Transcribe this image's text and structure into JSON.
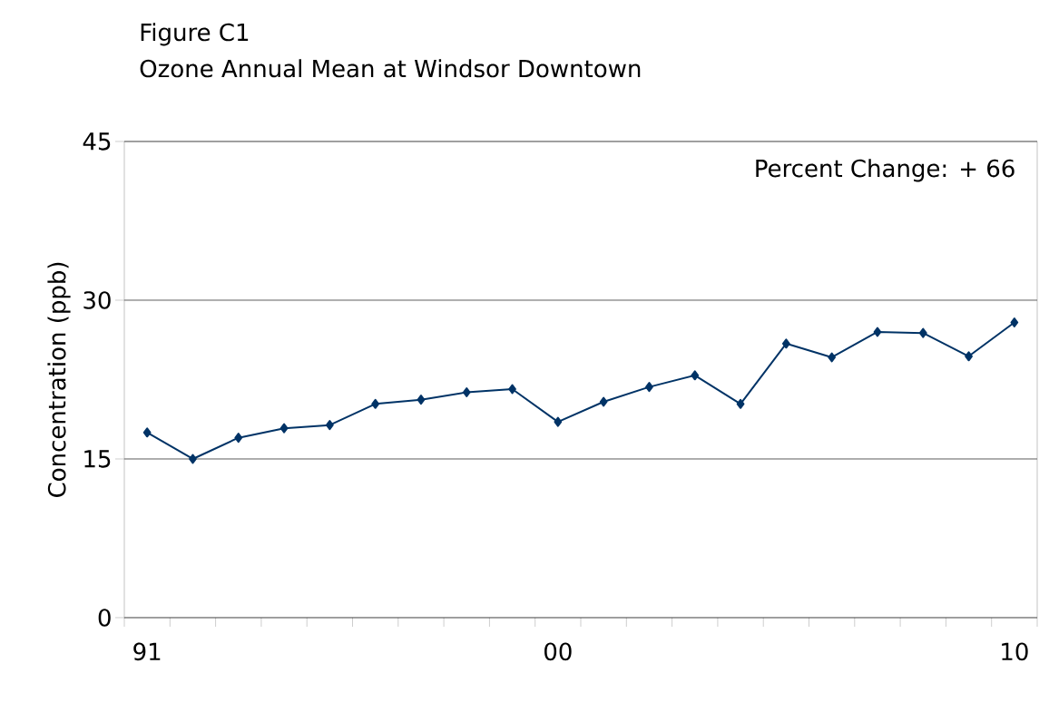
{
  "chart_data": {
    "type": "line",
    "title": "Figure C1",
    "subtitle": "Ozone Annual Mean at Windsor Downtown",
    "ylabel": "Concentration (ppb)",
    "categories": [
      "91",
      null,
      null,
      null,
      null,
      null,
      null,
      null,
      null,
      "00",
      null,
      null,
      null,
      null,
      null,
      null,
      null,
      null,
      null,
      "10"
    ],
    "series": [
      {
        "color": "#003366",
        "values": [
          17.5,
          15.0,
          17.0,
          17.9,
          18.2,
          20.2,
          20.6,
          21.3,
          21.6,
          18.5,
          20.4,
          21.8,
          22.9,
          20.2,
          25.9,
          24.6,
          27.0,
          26.9,
          24.7,
          27.9
        ]
      }
    ],
    "ylim": [
      0,
      45
    ],
    "yticks": [
      0,
      15,
      30,
      45
    ],
    "grid": "y",
    "marker": "diamond",
    "line_style": "solid",
    "annotations": [
      "Percent Change: + 66"
    ]
  }
}
